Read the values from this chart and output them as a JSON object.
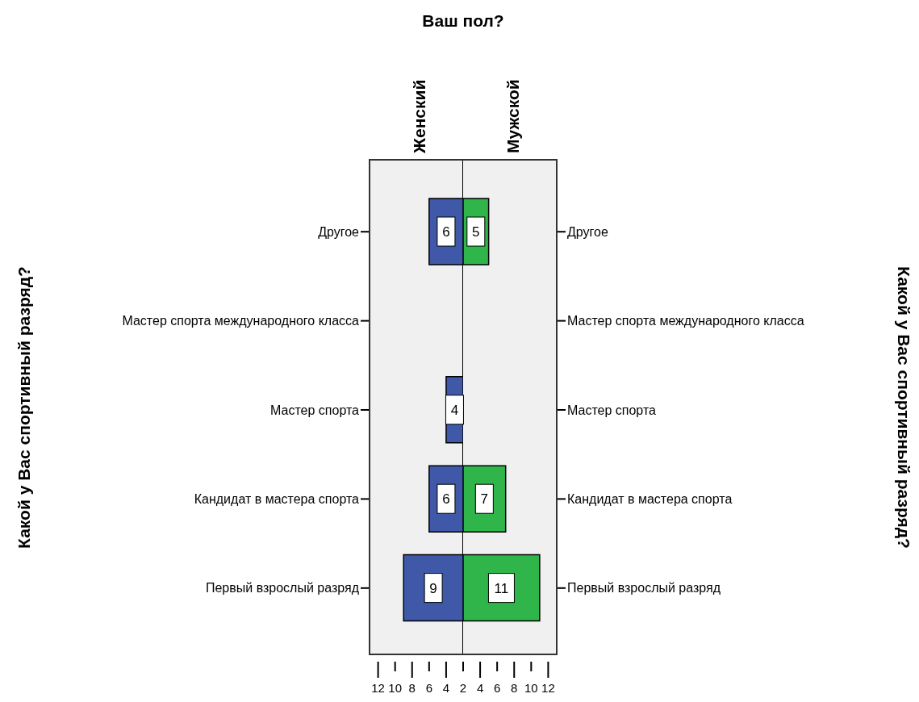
{
  "chart_data": [
    {
      "type": "bar",
      "orientation": "horizontal",
      "title": "Ваш пол?",
      "subtitle": "Женский",
      "ylabel": "Какой у Вас спортивный разряд?",
      "categories": [
        "Другое",
        "Мастер спорта международного класса",
        "Мастер спорта",
        "Кандидат в мастера спорта",
        "Первый взрослый разряд"
      ],
      "series": [
        {
          "color": "#3f58a8",
          "values": [
            6,
            null,
            4,
            6,
            9
          ]
        }
      ],
      "xlim": [
        13.1,
        2
      ],
      "xticks": [
        2,
        4,
        6,
        8,
        10,
        12
      ],
      "data_labels": true,
      "grid": false,
      "legend": false
    },
    {
      "type": "bar",
      "orientation": "horizontal",
      "subtitle": "Мужской",
      "ylabel": "Какой у Вас спортивный разряд?",
      "categories": [
        "Другое",
        "Мастер спорта международного класса",
        "Мастер спорта",
        "Кандидат в мастера спорта",
        "Первый взрослый разряд"
      ],
      "series": [
        {
          "color": "#2fb54a",
          "values": [
            5,
            null,
            null,
            7,
            11
          ]
        }
      ],
      "xlim": [
        2,
        13.1
      ],
      "xticks": [
        {
          "value": 2,
          "label": null
        },
        4,
        6,
        8,
        10,
        12
      ],
      "data_labels": true,
      "grid": false,
      "legend": false
    }
  ]
}
